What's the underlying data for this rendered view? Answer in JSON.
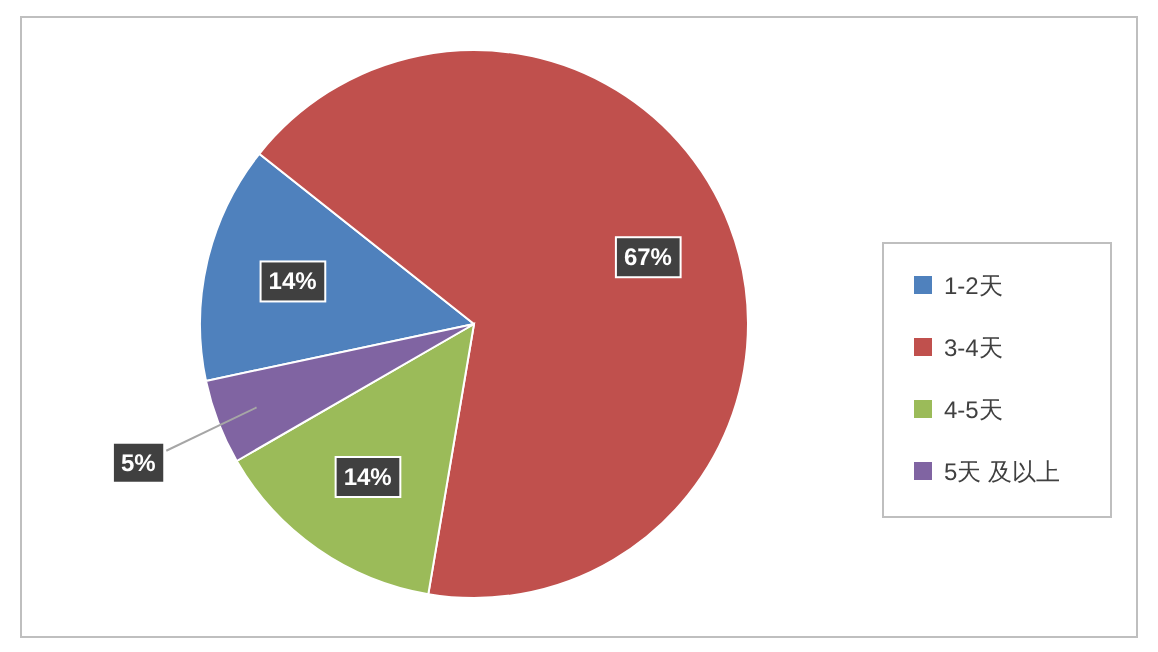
{
  "chart_data": {
    "type": "pie",
    "categories": [
      "1-2天",
      "3-4天",
      "4-5天",
      "5天 及以上"
    ],
    "values": [
      14,
      67,
      14,
      5
    ],
    "colors": [
      "#4f81bd",
      "#c0504d",
      "#9bbb59",
      "#8064a2"
    ],
    "value_labels": [
      "14%",
      "67%",
      "14%",
      "5%"
    ],
    "legend": "right"
  }
}
